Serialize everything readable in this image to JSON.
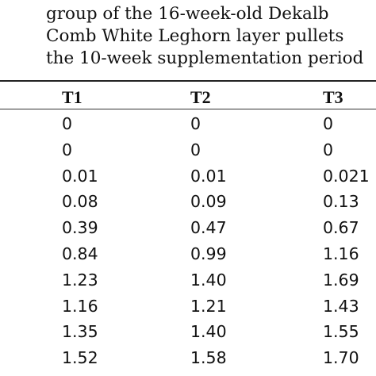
{
  "caption": {
    "lines": [
      "group of the 16-week-old Dekalb",
      "Comb White Leghorn layer pullets",
      "the 10-week supplementation period"
    ]
  },
  "table": {
    "headers": [
      "T1",
      "T2",
      "T3"
    ],
    "rows": [
      [
        "0",
        "0",
        "0"
      ],
      [
        "0",
        "0",
        "0"
      ],
      [
        "0.01",
        "0.01",
        "0.021"
      ],
      [
        "0.08",
        "0.09",
        "0.13"
      ],
      [
        "0.39",
        "0.47",
        "0.67"
      ],
      [
        "0.84",
        "0.99",
        "1.16"
      ],
      [
        "1.23",
        "1.40",
        "1.69"
      ],
      [
        "1.16",
        "1.21",
        "1.43"
      ],
      [
        "1.35",
        "1.40",
        "1.55"
      ],
      [
        "1.52",
        "1.58",
        "1.70"
      ]
    ]
  }
}
